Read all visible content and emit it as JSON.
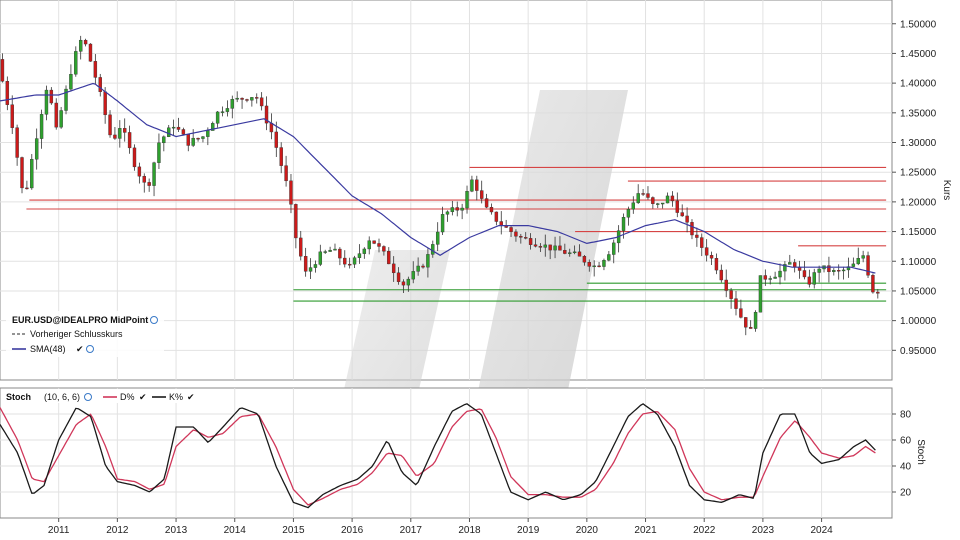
{
  "chart_data": {
    "type": "candlestick",
    "instrument": "EUR.USD@IDEALPRO MidPoint",
    "legend": [
      {
        "label": "EUR.USD@IDEALPRO MidPoint",
        "icon": "globe-icon"
      },
      {
        "label": "Vorheriger Schlusskurs",
        "color": "#555555",
        "style": "dashed"
      },
      {
        "label": "SMA(48)",
        "color": "#3a3aa0",
        "icon": "check-globe-icon"
      }
    ],
    "main": {
      "ylabel": "Kurs",
      "ylim": [
        0.9,
        1.54
      ],
      "yticks": [
        "1.50000",
        "1.45000",
        "1.40000",
        "1.35000",
        "1.30000",
        "1.25000",
        "1.20000",
        "1.15000",
        "1.10000",
        "1.05000",
        "1.00000",
        "0.95000"
      ],
      "ytick_values": [
        1.5,
        1.45,
        1.4,
        1.35,
        1.3,
        1.25,
        1.2,
        1.15,
        1.1,
        1.05,
        1.0,
        0.95
      ],
      "up_color": "#2ea02e",
      "down_color": "#cc1a1a",
      "anchors": [
        [
          2010.0,
          1.44
        ],
        [
          2010.25,
          1.33
        ],
        [
          2010.45,
          1.2
        ],
        [
          2010.6,
          1.28
        ],
        [
          2010.85,
          1.4
        ],
        [
          2011.0,
          1.32
        ],
        [
          2011.3,
          1.44
        ],
        [
          2011.45,
          1.48
        ],
        [
          2011.7,
          1.4
        ],
        [
          2011.95,
          1.3
        ],
        [
          2012.1,
          1.33
        ],
        [
          2012.35,
          1.26
        ],
        [
          2012.55,
          1.22
        ],
        [
          2012.75,
          1.3
        ],
        [
          2013.0,
          1.33
        ],
        [
          2013.25,
          1.3
        ],
        [
          2013.5,
          1.31
        ],
        [
          2013.75,
          1.35
        ],
        [
          2014.0,
          1.37
        ],
        [
          2014.4,
          1.38
        ],
        [
          2014.7,
          1.31
        ],
        [
          2014.95,
          1.22
        ],
        [
          2015.1,
          1.13
        ],
        [
          2015.25,
          1.08
        ],
        [
          2015.5,
          1.11
        ],
        [
          2015.7,
          1.12
        ],
        [
          2016.0,
          1.09
        ],
        [
          2016.35,
          1.14
        ],
        [
          2016.6,
          1.11
        ],
        [
          2016.9,
          1.06
        ],
        [
          2017.0,
          1.07
        ],
        [
          2017.3,
          1.1
        ],
        [
          2017.6,
          1.18
        ],
        [
          2017.9,
          1.19
        ],
        [
          2018.1,
          1.24
        ],
        [
          2018.3,
          1.19
        ],
        [
          2018.6,
          1.16
        ],
        [
          2018.9,
          1.14
        ],
        [
          2019.2,
          1.13
        ],
        [
          2019.5,
          1.12
        ],
        [
          2019.85,
          1.11
        ],
        [
          2020.2,
          1.09
        ],
        [
          2020.45,
          1.12
        ],
        [
          2020.7,
          1.18
        ],
        [
          2020.95,
          1.22
        ],
        [
          2021.2,
          1.19
        ],
        [
          2021.45,
          1.21
        ],
        [
          2021.75,
          1.16
        ],
        [
          2021.95,
          1.13
        ],
        [
          2022.2,
          1.1
        ],
        [
          2022.45,
          1.05
        ],
        [
          2022.7,
          1.0
        ],
        [
          2022.85,
          0.98
        ],
        [
          2023.0,
          1.07
        ],
        [
          2023.3,
          1.08
        ],
        [
          2023.55,
          1.1
        ],
        [
          2023.8,
          1.06
        ],
        [
          2024.0,
          1.09
        ],
        [
          2024.3,
          1.08
        ],
        [
          2024.55,
          1.09
        ],
        [
          2024.75,
          1.11
        ],
        [
          2024.92,
          1.05
        ]
      ],
      "sma_anchors": [
        [
          2010.0,
          1.37
        ],
        [
          2010.6,
          1.38
        ],
        [
          2011.0,
          1.38
        ],
        [
          2011.6,
          1.4
        ],
        [
          2012.0,
          1.37
        ],
        [
          2012.5,
          1.33
        ],
        [
          2013.0,
          1.31
        ],
        [
          2013.5,
          1.32
        ],
        [
          2014.0,
          1.33
        ],
        [
          2014.5,
          1.34
        ],
        [
          2015.0,
          1.31
        ],
        [
          2015.5,
          1.26
        ],
        [
          2016.0,
          1.21
        ],
        [
          2016.5,
          1.18
        ],
        [
          2017.0,
          1.14
        ],
        [
          2017.5,
          1.11
        ],
        [
          2018.0,
          1.14
        ],
        [
          2018.5,
          1.16
        ],
        [
          2019.0,
          1.16
        ],
        [
          2019.5,
          1.15
        ],
        [
          2020.0,
          1.13
        ],
        [
          2020.5,
          1.14
        ],
        [
          2021.0,
          1.16
        ],
        [
          2021.5,
          1.17
        ],
        [
          2022.0,
          1.15
        ],
        [
          2022.5,
          1.12
        ],
        [
          2023.0,
          1.1
        ],
        [
          2023.5,
          1.09
        ],
        [
          2024.0,
          1.09
        ],
        [
          2024.5,
          1.09
        ],
        [
          2024.92,
          1.08
        ]
      ],
      "resistance_lines": [
        {
          "value": 1.258,
          "from": 2018.0,
          "to": 2025.1
        },
        {
          "value": 1.235,
          "from": 2020.7,
          "to": 2025.1
        },
        {
          "value": 1.203,
          "from": 2010.5,
          "to": 2025.1
        },
        {
          "value": 1.188,
          "from": 2010.45,
          "to": 2025.1
        },
        {
          "value": 1.15,
          "from": 2019.8,
          "to": 2025.1
        },
        {
          "value": 1.126,
          "from": 2023.6,
          "to": 2025.1
        }
      ],
      "support_lines": [
        {
          "value": 1.063,
          "from": 2020.0,
          "to": 2025.1
        },
        {
          "value": 1.052,
          "from": 2015.0,
          "to": 2025.1
        },
        {
          "value": 1.033,
          "from": 2015.0,
          "to": 2025.1
        }
      ]
    },
    "stoch": {
      "title": "Stoch",
      "params": "(10, 6, 6)",
      "ylabel": "Stoch",
      "ylim": [
        0,
        100
      ],
      "yticks": [
        "80",
        "60",
        "40",
        "20"
      ],
      "ytick_values": [
        80,
        60,
        40,
        20
      ],
      "d_label": "D%",
      "k_label": "K%",
      "d_color": "#d0375a",
      "k_color": "#1a1a1a",
      "k_anchors": [
        [
          2010.0,
          72
        ],
        [
          2010.3,
          50
        ],
        [
          2010.55,
          18
        ],
        [
          2010.75,
          25
        ],
        [
          2011.0,
          60
        ],
        [
          2011.3,
          85
        ],
        [
          2011.55,
          78
        ],
        [
          2011.8,
          40
        ],
        [
          2012.0,
          28
        ],
        [
          2012.3,
          25
        ],
        [
          2012.55,
          20
        ],
        [
          2012.8,
          30
        ],
        [
          2013.0,
          70
        ],
        [
          2013.3,
          70
        ],
        [
          2013.55,
          58
        ],
        [
          2013.8,
          70
        ],
        [
          2014.1,
          85
        ],
        [
          2014.4,
          80
        ],
        [
          2014.7,
          40
        ],
        [
          2015.0,
          12
        ],
        [
          2015.25,
          8
        ],
        [
          2015.5,
          18
        ],
        [
          2015.8,
          25
        ],
        [
          2016.1,
          30
        ],
        [
          2016.35,
          40
        ],
        [
          2016.6,
          60
        ],
        [
          2016.85,
          35
        ],
        [
          2017.1,
          25
        ],
        [
          2017.4,
          55
        ],
        [
          2017.7,
          82
        ],
        [
          2017.95,
          88
        ],
        [
          2018.2,
          80
        ],
        [
          2018.45,
          50
        ],
        [
          2018.7,
          20
        ],
        [
          2019.0,
          14
        ],
        [
          2019.3,
          20
        ],
        [
          2019.6,
          14
        ],
        [
          2019.9,
          18
        ],
        [
          2020.15,
          28
        ],
        [
          2020.45,
          55
        ],
        [
          2020.7,
          78
        ],
        [
          2020.95,
          88
        ],
        [
          2021.2,
          80
        ],
        [
          2021.5,
          55
        ],
        [
          2021.75,
          25
        ],
        [
          2022.0,
          14
        ],
        [
          2022.3,
          12
        ],
        [
          2022.6,
          18
        ],
        [
          2022.85,
          15
        ],
        [
          2023.0,
          50
        ],
        [
          2023.3,
          80
        ],
        [
          2023.55,
          80
        ],
        [
          2023.8,
          50
        ],
        [
          2024.0,
          42
        ],
        [
          2024.3,
          45
        ],
        [
          2024.55,
          55
        ],
        [
          2024.75,
          60
        ],
        [
          2024.92,
          52
        ]
      ],
      "d_anchors": [
        [
          2010.0,
          85
        ],
        [
          2010.3,
          60
        ],
        [
          2010.55,
          30
        ],
        [
          2010.75,
          28
        ],
        [
          2011.0,
          48
        ],
        [
          2011.3,
          72
        ],
        [
          2011.55,
          80
        ],
        [
          2011.8,
          55
        ],
        [
          2012.0,
          30
        ],
        [
          2012.3,
          28
        ],
        [
          2012.55,
          22
        ],
        [
          2012.8,
          26
        ],
        [
          2013.0,
          55
        ],
        [
          2013.3,
          68
        ],
        [
          2013.55,
          62
        ],
        [
          2013.8,
          65
        ],
        [
          2014.1,
          78
        ],
        [
          2014.4,
          80
        ],
        [
          2014.7,
          55
        ],
        [
          2015.0,
          22
        ],
        [
          2015.25,
          10
        ],
        [
          2015.5,
          15
        ],
        [
          2015.8,
          22
        ],
        [
          2016.1,
          26
        ],
        [
          2016.35,
          35
        ],
        [
          2016.6,
          50
        ],
        [
          2016.85,
          48
        ],
        [
          2017.1,
          32
        ],
        [
          2017.4,
          42
        ],
        [
          2017.7,
          70
        ],
        [
          2017.95,
          82
        ],
        [
          2018.2,
          84
        ],
        [
          2018.45,
          62
        ],
        [
          2018.7,
          32
        ],
        [
          2019.0,
          18
        ],
        [
          2019.3,
          18
        ],
        [
          2019.6,
          16
        ],
        [
          2019.9,
          16
        ],
        [
          2020.15,
          22
        ],
        [
          2020.45,
          42
        ],
        [
          2020.7,
          65
        ],
        [
          2020.95,
          80
        ],
        [
          2021.2,
          82
        ],
        [
          2021.5,
          68
        ],
        [
          2021.75,
          38
        ],
        [
          2022.0,
          20
        ],
        [
          2022.3,
          14
        ],
        [
          2022.6,
          16
        ],
        [
          2022.85,
          16
        ],
        [
          2023.0,
          32
        ],
        [
          2023.3,
          62
        ],
        [
          2023.55,
          75
        ],
        [
          2023.8,
          62
        ],
        [
          2024.0,
          50
        ],
        [
          2024.3,
          46
        ],
        [
          2024.55,
          48
        ],
        [
          2024.75,
          55
        ],
        [
          2024.92,
          50
        ]
      ]
    },
    "x_axis": {
      "labels": [
        "2011",
        "2012",
        "2013",
        "2014",
        "2015",
        "2016",
        "2017",
        "2018",
        "2019",
        "2020",
        "2021",
        "2022",
        "2023",
        "2024"
      ],
      "values": [
        2011,
        2012,
        2013,
        2014,
        2015,
        2016,
        2017,
        2018,
        2019,
        2020,
        2021,
        2022,
        2023,
        2024
      ],
      "range": [
        2010.0,
        2025.2
      ]
    },
    "grid": true
  }
}
